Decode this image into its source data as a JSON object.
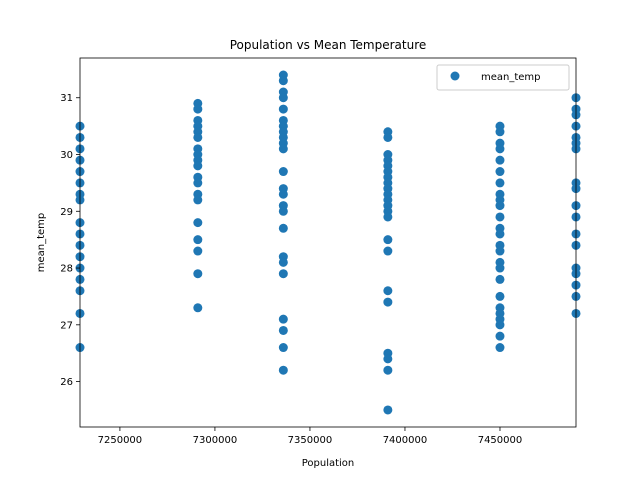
{
  "chart_data": {
    "type": "scatter",
    "title": "Population vs Mean Temperature",
    "xlabel": "Population",
    "ylabel": "mean_temp",
    "xlim": [
      7229000,
      7490000
    ],
    "ylim": [
      25.2,
      31.7
    ],
    "xticks": [
      7250000,
      7300000,
      7350000,
      7400000,
      7450000
    ],
    "yticks": [
      26,
      27,
      28,
      29,
      30,
      31
    ],
    "grid": false,
    "legend_position": "top-right",
    "series": [
      {
        "name": "mean_temp",
        "color": "#1f77b4",
        "points": [
          [
            7229000,
            30.5
          ],
          [
            7229000,
            30.3
          ],
          [
            7229000,
            30.1
          ],
          [
            7229000,
            29.9
          ],
          [
            7229000,
            29.7
          ],
          [
            7229000,
            29.5
          ],
          [
            7229000,
            29.3
          ],
          [
            7229000,
            29.2
          ],
          [
            7229000,
            28.8
          ],
          [
            7229000,
            28.6
          ],
          [
            7229000,
            28.4
          ],
          [
            7229000,
            28.2
          ],
          [
            7229000,
            28.0
          ],
          [
            7229000,
            27.8
          ],
          [
            7229000,
            27.6
          ],
          [
            7229000,
            27.2
          ],
          [
            7229000,
            26.6
          ],
          [
            7291000,
            30.9
          ],
          [
            7291000,
            30.8
          ],
          [
            7291000,
            30.6
          ],
          [
            7291000,
            30.5
          ],
          [
            7291000,
            30.4
          ],
          [
            7291000,
            30.3
          ],
          [
            7291000,
            30.1
          ],
          [
            7291000,
            30.0
          ],
          [
            7291000,
            29.9
          ],
          [
            7291000,
            29.8
          ],
          [
            7291000,
            29.6
          ],
          [
            7291000,
            29.5
          ],
          [
            7291000,
            29.3
          ],
          [
            7291000,
            29.2
          ],
          [
            7291000,
            28.8
          ],
          [
            7291000,
            28.5
          ],
          [
            7291000,
            28.3
          ],
          [
            7291000,
            27.9
          ],
          [
            7291000,
            27.3
          ],
          [
            7336000,
            31.4
          ],
          [
            7336000,
            31.3
          ],
          [
            7336000,
            31.1
          ],
          [
            7336000,
            31.0
          ],
          [
            7336000,
            30.8
          ],
          [
            7336000,
            30.6
          ],
          [
            7336000,
            30.5
          ],
          [
            7336000,
            30.4
          ],
          [
            7336000,
            30.3
          ],
          [
            7336000,
            30.2
          ],
          [
            7336000,
            30.1
          ],
          [
            7336000,
            29.7
          ],
          [
            7336000,
            29.4
          ],
          [
            7336000,
            29.3
          ],
          [
            7336000,
            29.1
          ],
          [
            7336000,
            29.0
          ],
          [
            7336000,
            28.7
          ],
          [
            7336000,
            28.2
          ],
          [
            7336000,
            28.1
          ],
          [
            7336000,
            27.9
          ],
          [
            7336000,
            27.1
          ],
          [
            7336000,
            26.9
          ],
          [
            7336000,
            26.6
          ],
          [
            7336000,
            26.2
          ],
          [
            7391000,
            30.4
          ],
          [
            7391000,
            30.3
          ],
          [
            7391000,
            30.0
          ],
          [
            7391000,
            29.9
          ],
          [
            7391000,
            29.8
          ],
          [
            7391000,
            29.7
          ],
          [
            7391000,
            29.6
          ],
          [
            7391000,
            29.5
          ],
          [
            7391000,
            29.4
          ],
          [
            7391000,
            29.3
          ],
          [
            7391000,
            29.2
          ],
          [
            7391000,
            29.1
          ],
          [
            7391000,
            29.0
          ],
          [
            7391000,
            28.9
          ],
          [
            7391000,
            28.5
          ],
          [
            7391000,
            28.3
          ],
          [
            7391000,
            27.6
          ],
          [
            7391000,
            27.4
          ],
          [
            7391000,
            26.5
          ],
          [
            7391000,
            26.4
          ],
          [
            7391000,
            26.2
          ],
          [
            7391000,
            25.5
          ],
          [
            7450000,
            30.5
          ],
          [
            7450000,
            30.4
          ],
          [
            7450000,
            30.2
          ],
          [
            7450000,
            30.1
          ],
          [
            7450000,
            29.9
          ],
          [
            7450000,
            29.7
          ],
          [
            7450000,
            29.5
          ],
          [
            7450000,
            29.3
          ],
          [
            7450000,
            29.2
          ],
          [
            7450000,
            29.1
          ],
          [
            7450000,
            28.9
          ],
          [
            7450000,
            28.7
          ],
          [
            7450000,
            28.6
          ],
          [
            7450000,
            28.4
          ],
          [
            7450000,
            28.3
          ],
          [
            7450000,
            28.1
          ],
          [
            7450000,
            28.0
          ],
          [
            7450000,
            27.8
          ],
          [
            7450000,
            27.5
          ],
          [
            7450000,
            27.3
          ],
          [
            7450000,
            27.2
          ],
          [
            7450000,
            27.1
          ],
          [
            7450000,
            27.0
          ],
          [
            7450000,
            26.8
          ],
          [
            7450000,
            26.6
          ],
          [
            7490000,
            31.0
          ],
          [
            7490000,
            30.8
          ],
          [
            7490000,
            30.7
          ],
          [
            7490000,
            30.5
          ],
          [
            7490000,
            30.3
          ],
          [
            7490000,
            30.2
          ],
          [
            7490000,
            30.1
          ],
          [
            7490000,
            29.5
          ],
          [
            7490000,
            29.4
          ],
          [
            7490000,
            29.1
          ],
          [
            7490000,
            28.9
          ],
          [
            7490000,
            28.6
          ],
          [
            7490000,
            28.4
          ],
          [
            7490000,
            28.0
          ],
          [
            7490000,
            27.9
          ],
          [
            7490000,
            27.7
          ],
          [
            7490000,
            27.5
          ],
          [
            7490000,
            27.2
          ]
        ]
      }
    ]
  }
}
